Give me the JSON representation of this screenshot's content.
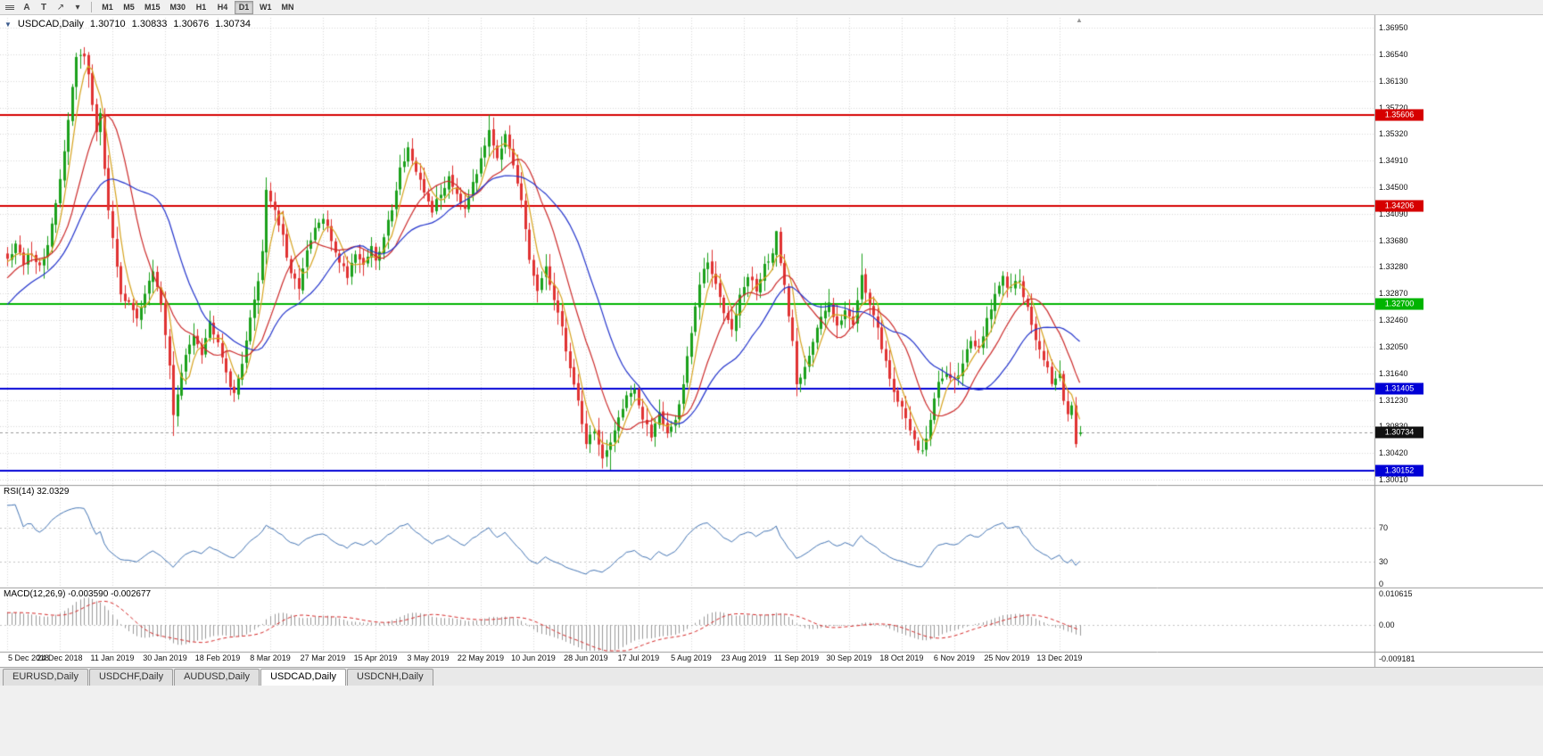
{
  "toolbar": {
    "text_tool_label": "A",
    "template_tool_label": "T",
    "draw_tool_glyph": "↗",
    "caret_glyph": "▾",
    "timeframes": [
      "M1",
      "M5",
      "M15",
      "M30",
      "H1",
      "H4",
      "D1",
      "W1",
      "MN"
    ],
    "active_timeframe": "D1"
  },
  "chart_header": {
    "collapse_glyph": "▼",
    "symbol": "USDCAD,Daily",
    "open": "1.30710",
    "high": "1.30833",
    "low": "1.30676",
    "close": "1.30734"
  },
  "shift_marker_glyph": "▲",
  "price_axis": {
    "ticks": [
      "1.36950",
      "1.36540",
      "1.36130",
      "1.35720",
      "1.35320",
      "1.34910",
      "1.34500",
      "1.34090",
      "1.33680",
      "1.33280",
      "1.32870",
      "1.32460",
      "1.32050",
      "1.31640",
      "1.31230",
      "1.30830",
      "1.30420",
      "1.30010"
    ]
  },
  "time_axis": {
    "labels": [
      "5 Dec 2018",
      "24 Dec 2018",
      "11 Jan 2019",
      "30 Jan 2019",
      "18 Feb 2019",
      "8 Mar 2019",
      "27 Mar 2019",
      "15 Apr 2019",
      "3 May 2019",
      "22 May 2019",
      "10 Jun 2019",
      "28 Jun 2019",
      "17 Jul 2019",
      "5 Aug 2019",
      "23 Aug 2019",
      "11 Sep 2019",
      "30 Sep 2019",
      "18 Oct 2019",
      "6 Nov 2019",
      "25 Nov 2019",
      "13 Dec 2019"
    ],
    "day_indices": [
      0,
      13,
      26,
      39,
      52,
      65,
      78,
      91,
      104,
      117,
      130,
      143,
      156,
      169,
      182,
      195,
      208,
      221,
      234,
      247,
      260
    ]
  },
  "levels": [
    {
      "value": 1.35606,
      "label": "1.35606",
      "color": "#d60000"
    },
    {
      "value": 1.34206,
      "label": "1.34206",
      "color": "#d60000"
    },
    {
      "value": 1.327,
      "label": "1.32700",
      "color": "#00b400"
    },
    {
      "value": 1.31405,
      "label": "1.31405",
      "color": "#0000d6"
    },
    {
      "value": 1.30152,
      "label": "1.30152",
      "color": "#0000d6"
    }
  ],
  "current_price": {
    "value": 1.30734,
    "label": "1.30734",
    "badge_color": "#111111"
  },
  "rsi_panel": {
    "title": "RSI(14) 32.0329",
    "levels": [
      70,
      30
    ],
    "axis_labels": [
      "70",
      "30",
      "0"
    ],
    "line_color": "#4576b5"
  },
  "macd_panel": {
    "title": "MACD(12,26,9) -0.003590 -0.002677",
    "axis_labels": [
      "0.010615",
      "0.00",
      "-0.009181"
    ],
    "histogram_color": "#9a9a9a",
    "signal_color": "#d62828"
  },
  "bottom_tabs": {
    "items": [
      {
        "label": "EURUSD,Daily"
      },
      {
        "label": "USDCHF,Daily"
      },
      {
        "label": "AUDUSD,Daily"
      },
      {
        "label": "USDCAD,Daily"
      },
      {
        "label": "USDCNH,Daily"
      }
    ],
    "active": "USDCAD,Daily"
  },
  "colors": {
    "candle_up": "#1ba11b",
    "candle_down": "#e03232",
    "ma_fast": "#d6a31e",
    "ma_mid": "#cc2a2a",
    "ma_slow": "#2233cc",
    "grid": "#d9d9d9",
    "panel_separator": "#9a9a9a"
  },
  "chart_data": {
    "type": "candlestick",
    "title": "USDCAD,Daily",
    "timeframe": "D1",
    "days": 266,
    "price_range": {
      "top": 1.371,
      "bottom": 1.2991
    },
    "last_candle": {
      "open": 1.3071,
      "high": 1.30833,
      "low": 1.30676,
      "close": 1.30734
    },
    "levels": [
      1.35606,
      1.34206,
      1.327,
      1.31405,
      1.30152
    ],
    "moving_averages": [
      {
        "period": 5,
        "color": "#d6a31e"
      },
      {
        "period": 13,
        "color": "#cc2a2a"
      },
      {
        "period": 25,
        "color": "#2233cc"
      }
    ],
    "rsi": {
      "period": 14,
      "current": 32.0329,
      "levels": [
        70,
        30
      ]
    },
    "macd": {
      "fast": 12,
      "slow": 26,
      "signal": 9,
      "current": -0.00359,
      "current_signal": -0.002677,
      "axis_max": 0.010615,
      "axis_min": -0.009181
    },
    "warmup": [
      [
        -40,
        1.3085
      ],
      [
        -30,
        1.315
      ],
      [
        -20,
        1.3215
      ],
      [
        -10,
        1.3285
      ],
      [
        -1,
        1.334
      ]
    ],
    "anchors": [
      [
        0,
        1.3345
      ],
      [
        2,
        1.3362
      ],
      [
        4,
        1.333
      ],
      [
        6,
        1.3352
      ],
      [
        8,
        1.3328
      ],
      [
        10,
        1.336
      ],
      [
        12,
        1.342
      ],
      [
        14,
        1.351
      ],
      [
        16,
        1.36
      ],
      [
        17,
        1.3648
      ],
      [
        19,
        1.3655
      ],
      [
        20,
        1.3628
      ],
      [
        21,
        1.3575
      ],
      [
        22,
        1.353
      ],
      [
        23,
        1.3565
      ],
      [
        24,
        1.348
      ],
      [
        25,
        1.3415
      ],
      [
        26,
        1.3368
      ],
      [
        28,
        1.329
      ],
      [
        30,
        1.3268
      ],
      [
        32,
        1.3252
      ],
      [
        34,
        1.3288
      ],
      [
        36,
        1.3318
      ],
      [
        38,
        1.3268
      ],
      [
        40,
        1.318
      ],
      [
        41,
        1.3098
      ],
      [
        42,
        1.3132
      ],
      [
        44,
        1.319
      ],
      [
        46,
        1.3228
      ],
      [
        48,
        1.3198
      ],
      [
        50,
        1.3242
      ],
      [
        52,
        1.3218
      ],
      [
        54,
        1.3168
      ],
      [
        56,
        1.3128
      ],
      [
        58,
        1.3185
      ],
      [
        60,
        1.3245
      ],
      [
        62,
        1.331
      ],
      [
        63,
        1.3352
      ],
      [
        64,
        1.3448
      ],
      [
        66,
        1.3415
      ],
      [
        68,
        1.3372
      ],
      [
        70,
        1.3312
      ],
      [
        72,
        1.33
      ],
      [
        74,
        1.3348
      ],
      [
        76,
        1.3385
      ],
      [
        78,
        1.3402
      ],
      [
        80,
        1.3368
      ],
      [
        82,
        1.3338
      ],
      [
        84,
        1.3315
      ],
      [
        86,
        1.3352
      ],
      [
        88,
        1.333
      ],
      [
        90,
        1.3362
      ],
      [
        91,
        1.3332
      ],
      [
        93,
        1.3372
      ],
      [
        95,
        1.342
      ],
      [
        97,
        1.3478
      ],
      [
        99,
        1.3512
      ],
      [
        101,
        1.3468
      ],
      [
        103,
        1.3442
      ],
      [
        105,
        1.3415
      ],
      [
        107,
        1.3438
      ],
      [
        109,
        1.3468
      ],
      [
        111,
        1.3442
      ],
      [
        113,
        1.342
      ],
      [
        115,
        1.3462
      ],
      [
        117,
        1.3488
      ],
      [
        119,
        1.3542
      ],
      [
        121,
        1.3498
      ],
      [
        123,
        1.3528
      ],
      [
        125,
        1.3478
      ],
      [
        127,
        1.3428
      ],
      [
        129,
        1.3338
      ],
      [
        131,
        1.3292
      ],
      [
        133,
        1.3322
      ],
      [
        135,
        1.3282
      ],
      [
        137,
        1.3232
      ],
      [
        139,
        1.3172
      ],
      [
        141,
        1.3122
      ],
      [
        143,
        1.3058
      ],
      [
        145,
        1.3078
      ],
      [
        147,
        1.3032
      ],
      [
        149,
        1.3052
      ],
      [
        151,
        1.3098
      ],
      [
        153,
        1.3132
      ],
      [
        155,
        1.3142
      ],
      [
        157,
        1.3092
      ],
      [
        159,
        1.3068
      ],
      [
        161,
        1.3108
      ],
      [
        163,
        1.3072
      ],
      [
        165,
        1.3092
      ],
      [
        167,
        1.3148
      ],
      [
        169,
        1.3225
      ],
      [
        171,
        1.3302
      ],
      [
        173,
        1.3335
      ],
      [
        175,
        1.3298
      ],
      [
        177,
        1.3262
      ],
      [
        179,
        1.3238
      ],
      [
        181,
        1.3282
      ],
      [
        183,
        1.3312
      ],
      [
        185,
        1.3292
      ],
      [
        187,
        1.3332
      ],
      [
        189,
        1.3342
      ],
      [
        190,
        1.3378
      ],
      [
        192,
        1.3298
      ],
      [
        194,
        1.3212
      ],
      [
        195,
        1.3148
      ],
      [
        197,
        1.3178
      ],
      [
        199,
        1.3212
      ],
      [
        201,
        1.3248
      ],
      [
        203,
        1.3272
      ],
      [
        205,
        1.3242
      ],
      [
        207,
        1.3258
      ],
      [
        209,
        1.3242
      ],
      [
        211,
        1.3318
      ],
      [
        213,
        1.3268
      ],
      [
        215,
        1.3228
      ],
      [
        217,
        1.3182
      ],
      [
        219,
        1.3138
      ],
      [
        221,
        1.3108
      ],
      [
        223,
        1.3078
      ],
      [
        225,
        1.3052
      ],
      [
        226,
        1.3042
      ],
      [
        228,
        1.3092
      ],
      [
        230,
        1.3148
      ],
      [
        232,
        1.3168
      ],
      [
        234,
        1.3152
      ],
      [
        236,
        1.3182
      ],
      [
        238,
        1.3218
      ],
      [
        240,
        1.3198
      ],
      [
        242,
        1.3248
      ],
      [
        244,
        1.3282
      ],
      [
        246,
        1.3308
      ],
      [
        248,
        1.3292
      ],
      [
        250,
        1.3312
      ],
      [
        252,
        1.3262
      ],
      [
        254,
        1.3218
      ],
      [
        256,
        1.3182
      ],
      [
        258,
        1.3152
      ],
      [
        260,
        1.3158
      ],
      [
        261,
        1.3122
      ],
      [
        262,
        1.3098
      ],
      [
        263,
        1.3112
      ],
      [
        264,
        1.3062
      ],
      [
        265,
        1.30734
      ]
    ],
    "wick_overrides": [
      [
        19,
        "high",
        1.3665
      ],
      [
        41,
        "low",
        1.3068
      ],
      [
        64,
        "high",
        1.3465
      ],
      [
        119,
        "high",
        1.3561
      ],
      [
        147,
        "low",
        1.3018
      ],
      [
        149,
        "low",
        1.3016
      ],
      [
        190,
        "high",
        1.3383
      ],
      [
        211,
        "high",
        1.3348
      ],
      [
        226,
        "low",
        1.304
      ]
    ]
  }
}
